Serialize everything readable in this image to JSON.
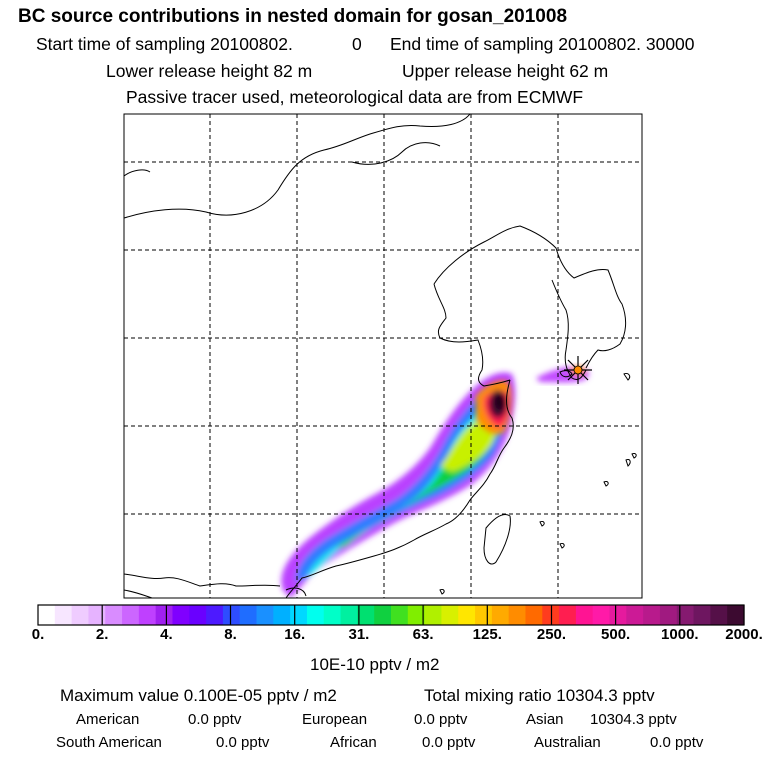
{
  "header": {
    "title": "BC  source contributions in nested domain for gosan_201008",
    "start_label": "Start time of sampling 20100802.",
    "start_time": "0",
    "end_label": "End time of sampling 20100802. 30000",
    "lower_release": "Lower release height   82 m",
    "upper_release": "Upper release height   62 m",
    "tracer_note": "Passive tracer used, meteorological data are from ECMWF"
  },
  "chart_data": {
    "type": "heatmap",
    "title": "BC  source contributions in nested domain for gosan_201008",
    "colorbar": {
      "ticks": [
        "0.",
        "2.",
        "4.",
        "8.",
        "16.",
        "31.",
        "63.",
        "125.",
        "250.",
        "500.",
        "1000.",
        "2000."
      ],
      "unit": "10E-10 pptv / m2",
      "colors": [
        "#ffffff",
        "#f7e6ff",
        "#efccff",
        "#e6b3ff",
        "#d98cff",
        "#cc66ff",
        "#bf40ff",
        "#a020f0",
        "#8000ff",
        "#6a00ff",
        "#4d1aff",
        "#2e4dff",
        "#1f6dff",
        "#1a90ff",
        "#00b0ff",
        "#00d8ff",
        "#00ffee",
        "#00ffc8",
        "#00f0a0",
        "#00e070",
        "#10d040",
        "#40e020",
        "#80ee00",
        "#b0f000",
        "#d8f000",
        "#ffe600",
        "#ffc800",
        "#ffaa00",
        "#ff8c00",
        "#ff6a00",
        "#ff3c1e",
        "#ff1e50",
        "#ff1493",
        "#ff1aa8",
        "#e61a9e",
        "#cc1a96",
        "#b81a8c",
        "#a01a80",
        "#851a70",
        "#6e1660",
        "#551048",
        "#3c0a30"
      ]
    },
    "receptor": "Gosan",
    "grid": true
  },
  "summary": {
    "max_value": "Maximum value  0.100E-05 pptv / m2",
    "total_mixing": "Total mixing ratio    10304.3 pptv"
  },
  "contributions": {
    "american_label": "American",
    "american_value": "0.0 pptv",
    "european_label": "European",
    "european_value": "0.0 pptv",
    "asian_label": "Asian",
    "asian_value": "10304.3 pptv",
    "south_american_label": "South American",
    "south_american_value": "0.0 pptv",
    "african_label": "African",
    "african_value": "0.0 pptv",
    "australian_label": "Australian",
    "australian_value": "0.0 pptv"
  }
}
